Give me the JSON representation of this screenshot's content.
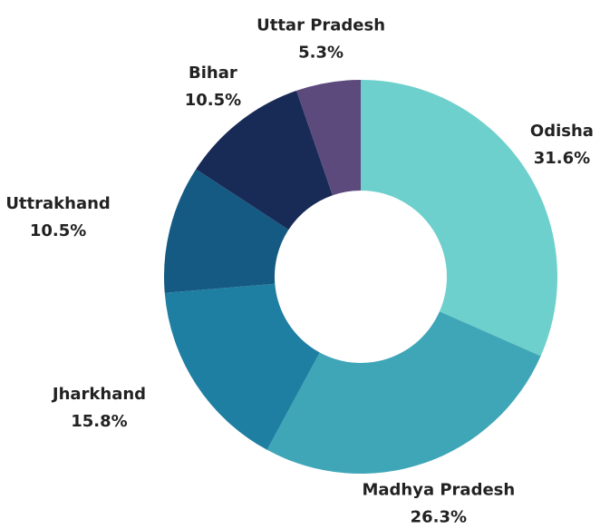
{
  "chart_data": {
    "type": "donut",
    "categories": [
      "Odisha",
      "Madhya Pradesh",
      "Jharkhand",
      "Uttrakhand",
      "Bihar",
      "Uttar Pradesh"
    ],
    "values": [
      31.6,
      26.3,
      15.8,
      10.5,
      10.5,
      5.3
    ],
    "value_labels": [
      "31.6%",
      "26.3%",
      "15.8%",
      "10.5%",
      "10.5%",
      "5.3%"
    ],
    "colors": [
      "#6dd0cc",
      "#3fa6b8",
      "#1f7fa3",
      "#155a82",
      "#182a56",
      "#5c4a7d"
    ]
  }
}
